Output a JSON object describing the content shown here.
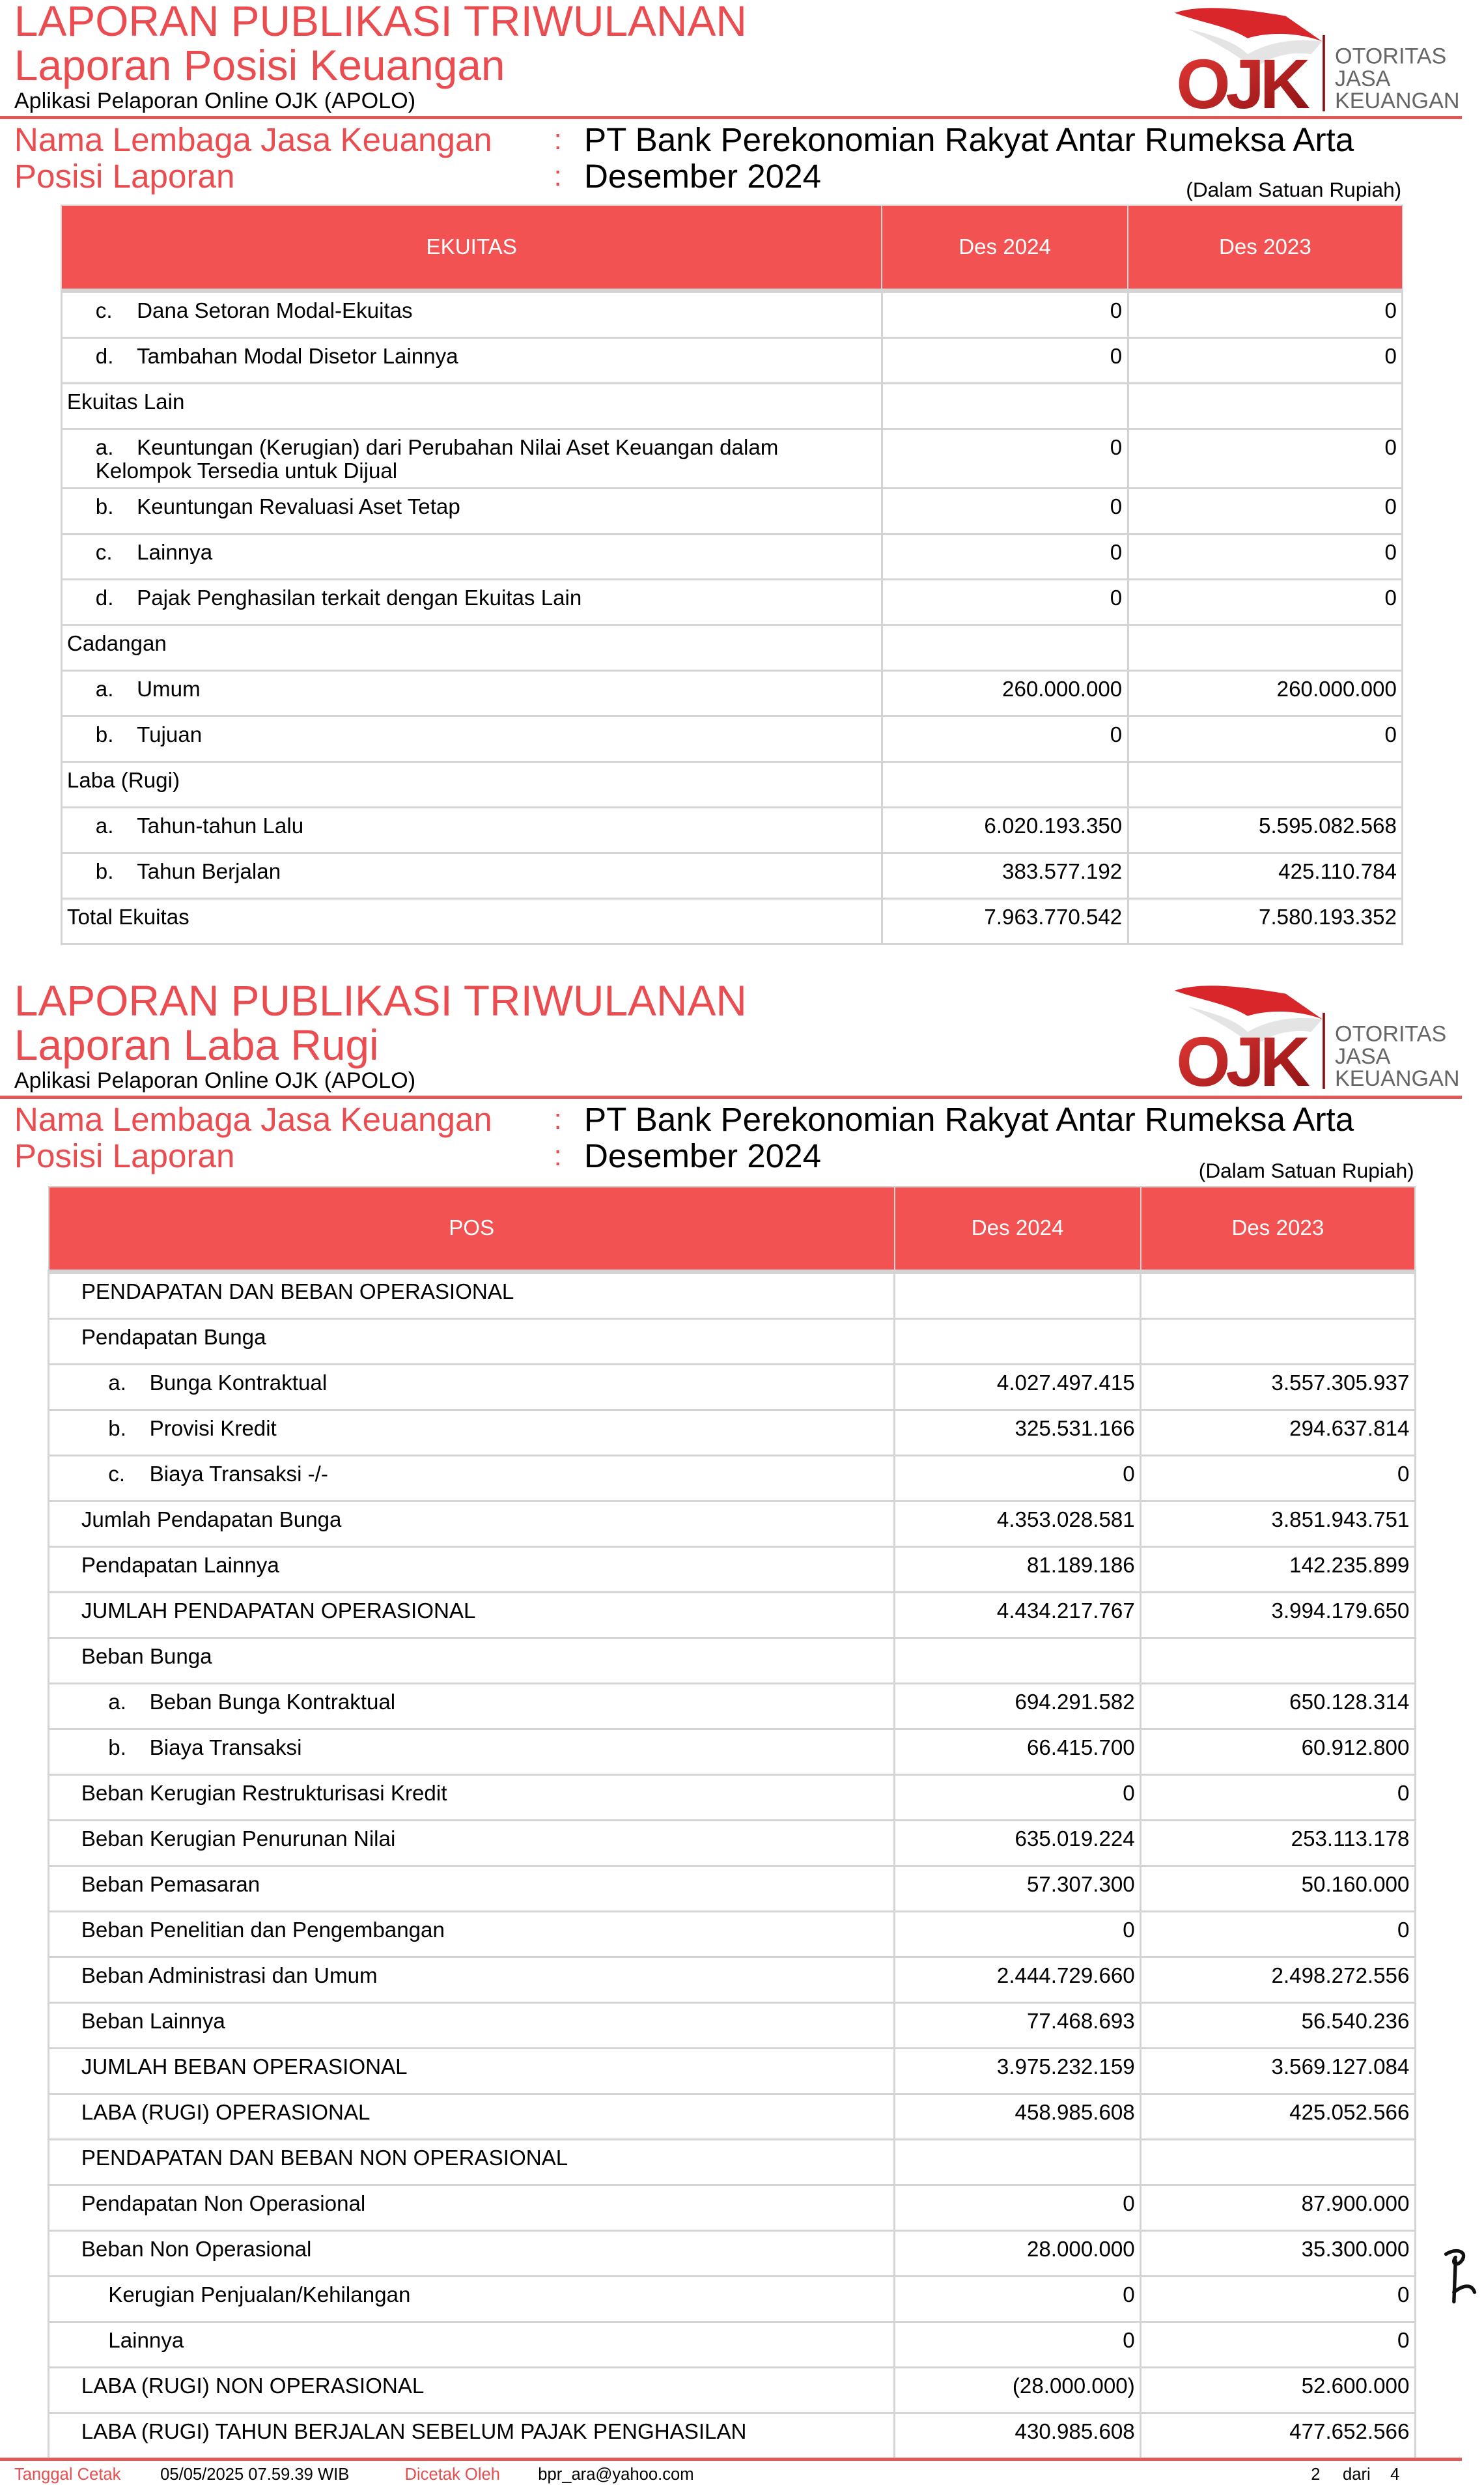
{
  "colors": {
    "accent": "#ea4c50",
    "header_bg": "#f25252",
    "grid": "#d4d4d4"
  },
  "logo": {
    "mark": "OJK",
    "text": [
      "OTORITAS",
      "JASA",
      "KEUANGAN"
    ]
  },
  "section1": {
    "title": "LAPORAN PUBLIKASI TRIWULANAN",
    "subtitle": "Laporan Posisi Keuangan",
    "app": "Aplikasi Pelaporan Online OJK (APOLO)",
    "meta": [
      {
        "label": "Nama Lembaga Jasa Keuangan",
        "sep": ":",
        "value": "PT Bank Perekonomian Rakyat Antar Rumeksa Arta"
      },
      {
        "label": "Posisi Laporan",
        "sep": ":",
        "value": "Desember 2024"
      }
    ],
    "unit": "(Dalam Satuan Rupiah)",
    "headers": [
      "EKUITAS",
      "Des 2024",
      "Des 2023"
    ],
    "rows": [
      {
        "letter": "c.",
        "label": "Dana Setoran Modal-Ekuitas",
        "v1": "0",
        "v2": "0"
      },
      {
        "letter": "d.",
        "label": "Tambahan Modal Disetor Lainnya",
        "v1": "0",
        "v2": "0"
      },
      {
        "label": "Ekuitas Lain",
        "v1": "",
        "v2": ""
      },
      {
        "letter": "a.",
        "label": "Keuntungan (Kerugian) dari Perubahan Nilai Aset Keuangan dalam",
        "label2": "Kelompok Tersedia untuk Dijual",
        "v1": "0",
        "v2": "0"
      },
      {
        "letter": "b.",
        "label": "Keuntungan Revaluasi Aset Tetap",
        "v1": "0",
        "v2": "0"
      },
      {
        "letter": "c.",
        "label": "Lainnya",
        "v1": "0",
        "v2": "0"
      },
      {
        "letter": "d.",
        "label": "Pajak Penghasilan terkait dengan Ekuitas Lain",
        "v1": "0",
        "v2": "0"
      },
      {
        "label": "Cadangan",
        "v1": "",
        "v2": ""
      },
      {
        "letter": "a.",
        "label": "Umum",
        "v1": "260.000.000",
        "v2": "260.000.000"
      },
      {
        "letter": "b.",
        "label": "Tujuan",
        "v1": "0",
        "v2": "0"
      },
      {
        "label": "Laba (Rugi)",
        "v1": "",
        "v2": ""
      },
      {
        "letter": "a.",
        "label": "Tahun-tahun Lalu",
        "v1": "6.020.193.350",
        "v2": "5.595.082.568"
      },
      {
        "letter": "b.",
        "label": "Tahun Berjalan",
        "v1": "383.577.192",
        "v2": "425.110.784"
      },
      {
        "label": "Total Ekuitas",
        "v1": "7.963.770.542",
        "v2": "7.580.193.352"
      }
    ]
  },
  "section2": {
    "title": "LAPORAN PUBLIKASI TRIWULANAN",
    "subtitle": "Laporan Laba Rugi",
    "app": "Aplikasi Pelaporan Online OJK (APOLO)",
    "meta": [
      {
        "label": "Nama Lembaga Jasa Keuangan",
        "sep": ":",
        "value": "PT Bank Perekonomian Rakyat Antar Rumeksa Arta"
      },
      {
        "label": "Posisi Laporan",
        "sep": ":",
        "value": "Desember 2024"
      }
    ],
    "unit": "(Dalam Satuan Rupiah)",
    "headers": [
      "POS",
      "Des 2024",
      "Des 2023"
    ],
    "rows": [
      {
        "label": "PENDAPATAN DAN BEBAN OPERASIONAL",
        "v1": "",
        "v2": ""
      },
      {
        "label": "Pendapatan Bunga",
        "v1": "",
        "v2": ""
      },
      {
        "letter": "a.",
        "label": "Bunga Kontraktual",
        "v1": "4.027.497.415",
        "v2": "3.557.305.937"
      },
      {
        "letter": "b.",
        "label": "Provisi Kredit",
        "v1": "325.531.166",
        "v2": "294.637.814"
      },
      {
        "letter": "c.",
        "label": "Biaya Transaksi -/-",
        "v1": "0",
        "v2": "0"
      },
      {
        "label": "Jumlah Pendapatan Bunga",
        "v1": "4.353.028.581",
        "v2": "3.851.943.751"
      },
      {
        "label": "Pendapatan Lainnya",
        "v1": "81.189.186",
        "v2": "142.235.899"
      },
      {
        "label": "JUMLAH PENDAPATAN OPERASIONAL",
        "v1": "4.434.217.767",
        "v2": "3.994.179.650"
      },
      {
        "label": "Beban Bunga",
        "v1": "",
        "v2": ""
      },
      {
        "letter": "a.",
        "label": "Beban Bunga Kontraktual",
        "v1": "694.291.582",
        "v2": "650.128.314"
      },
      {
        "letter": "b.",
        "label": "Biaya Transaksi",
        "v1": "66.415.700",
        "v2": "60.912.800"
      },
      {
        "label": "Beban Kerugian Restrukturisasi Kredit",
        "v1": "0",
        "v2": "0"
      },
      {
        "label": "Beban Kerugian Penurunan Nilai",
        "v1": "635.019.224",
        "v2": "253.113.178"
      },
      {
        "label": "Beban Pemasaran",
        "v1": "57.307.300",
        "v2": "50.160.000"
      },
      {
        "label": "Beban Penelitian dan Pengembangan",
        "v1": "0",
        "v2": "0"
      },
      {
        "label": "Beban Administrasi dan Umum",
        "v1": "2.444.729.660",
        "v2": "2.498.272.556"
      },
      {
        "label": "Beban Lainnya",
        "v1": "77.468.693",
        "v2": "56.540.236"
      },
      {
        "label": "JUMLAH BEBAN OPERASIONAL",
        "v1": "3.975.232.159",
        "v2": "3.569.127.084"
      },
      {
        "label": "LABA (RUGI) OPERASIONAL",
        "v1": "458.985.608",
        "v2": "425.052.566"
      },
      {
        "label": "PENDAPATAN DAN BEBAN NON OPERASIONAL",
        "v1": "",
        "v2": ""
      },
      {
        "label": "Pendapatan Non Operasional",
        "v1": "0",
        "v2": "87.900.000"
      },
      {
        "label": "Beban Non Operasional",
        "v1": "28.000.000",
        "v2": "35.300.000"
      },
      {
        "sub": true,
        "label": "Kerugian Penjualan/Kehilangan",
        "v1": "0",
        "v2": "0"
      },
      {
        "sub": true,
        "label": "Lainnya",
        "v1": "0",
        "v2": "0"
      },
      {
        "label": "LABA (RUGI) NON OPERASIONAL",
        "v1": "(28.000.000)",
        "v2": "52.600.000"
      },
      {
        "label": "LABA (RUGI) TAHUN BERJALAN SEBELUM PAJAK PENGHASILAN",
        "v1": "430.985.608",
        "v2": "477.652.566"
      }
    ]
  },
  "footer": {
    "print_date_label": "Tanggal Cetak",
    "print_date": "05/05/2025 07.59.39 WIB",
    "printed_by_label": "Dicetak Oleh",
    "printed_by": "bpr_ara@yahoo.com",
    "page": "2",
    "of_label": "dari",
    "total_pages": "4"
  }
}
